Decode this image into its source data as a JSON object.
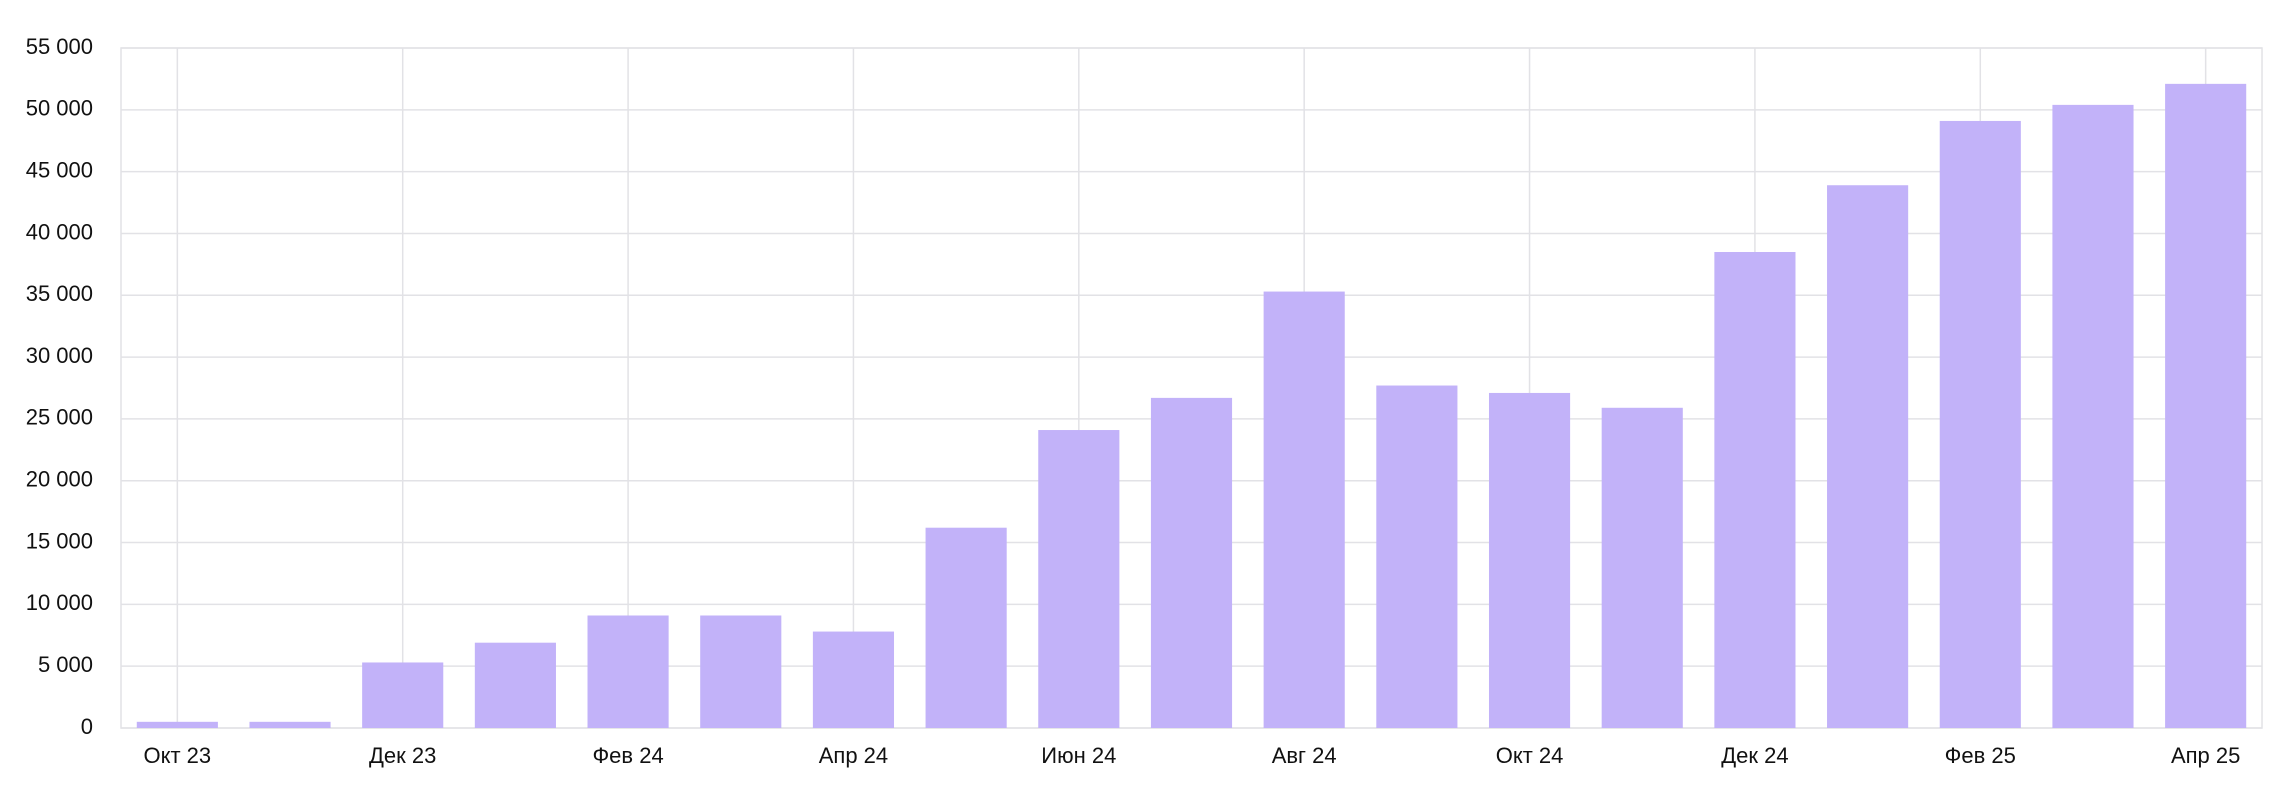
{
  "chart_data": {
    "type": "bar",
    "categories": [
      "Окт 23",
      null,
      "Дек 23",
      null,
      "Фев 24",
      null,
      "Апр 24",
      null,
      "Июн 24",
      null,
      "Авг 24",
      null,
      "Окт 24",
      null,
      "Дек 24",
      null,
      "Фев 25",
      null,
      "Апр 25"
    ],
    "values": [
      500,
      500,
      5300,
      6900,
      9100,
      9100,
      7800,
      16200,
      24100,
      26700,
      35300,
      27700,
      27100,
      25900,
      38500,
      43900,
      49100,
      50400,
      52100
    ],
    "color": "#c2b2f9",
    "ylim": [
      0,
      55000
    ],
    "yticks": [
      0,
      {
        "value": 5000,
        "label": "5 000"
      },
      {
        "value": 10000,
        "label": "10 000"
      },
      {
        "value": 15000,
        "label": "15 000"
      },
      {
        "value": 20000,
        "label": "20 000"
      },
      {
        "value": 25000,
        "label": "25 000"
      },
      {
        "value": 30000,
        "label": "30 000"
      },
      {
        "value": 35000,
        "label": "35 000"
      },
      {
        "value": 40000,
        "label": "40 000"
      },
      {
        "value": 45000,
        "label": "45 000"
      },
      {
        "value": 50000,
        "label": "50 000"
      },
      {
        "value": 55000,
        "label": "55 000"
      }
    ],
    "grid": true
  }
}
